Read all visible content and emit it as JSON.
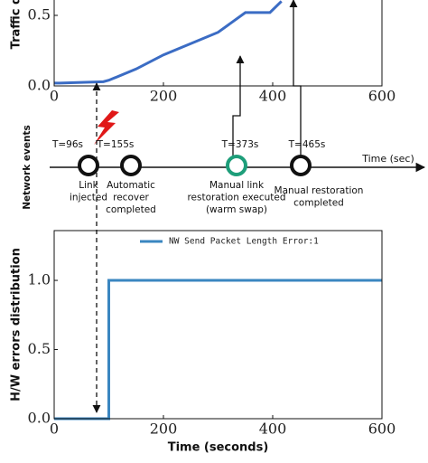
{
  "chart_data": [
    {
      "type": "line",
      "ylabel": "Traffic d",
      "x": [
        0,
        10,
        90,
        100,
        150,
        200,
        300,
        350,
        395,
        416
      ],
      "series": [
        {
          "color": "#3b6cc4",
          "style": "solid",
          "values": [
            0.02,
            0.02,
            0.03,
            0.04,
            0.12,
            0.22,
            0.38,
            0.52,
            0.52,
            0.6
          ]
        },
        {
          "color": "#d0508a",
          "style": "dashed",
          "values": [
            0.02,
            0.02,
            0.03,
            0.04,
            0.12,
            0.22,
            0.38,
            0.52,
            0.52,
            0.6
          ]
        }
      ],
      "xlim": [
        0,
        600
      ],
      "ylim": [
        0,
        0.6
      ],
      "xticks": [
        0,
        200,
        400,
        600
      ],
      "yticks": [
        {
          "value": 0,
          "label": "0.0"
        },
        {
          "value": 0.5,
          "label": "0.5"
        }
      ]
    },
    {
      "type": "line",
      "ylabel": "H/W errors distribution",
      "xlabel": "Time (seconds)",
      "legend": "upper center",
      "x": [
        0,
        100,
        100,
        600
      ],
      "series": [
        {
          "name": "NW Send Packet Length Error:1",
          "color": "#3a86c0",
          "style": "solid",
          "values": [
            0,
            0,
            1,
            1
          ]
        }
      ],
      "xlim": [
        0,
        600
      ],
      "ylim": [
        0,
        1.36
      ],
      "xticks": [
        0,
        200,
        400,
        600
      ],
      "yticks": [
        {
          "value": 0,
          "label": "0.0"
        },
        {
          "value": 0.5,
          "label": "0.5"
        },
        {
          "value": 1,
          "label": "1.0"
        }
      ]
    }
  ],
  "timeline": {
    "ylabel": "Network  events",
    "axis_label": "Time (sec)",
    "events": [
      {
        "label": "T=96s",
        "color": "#111",
        "description": [
          "Link",
          "injected"
        ]
      },
      {
        "label": "T=155s",
        "color": "#111",
        "description": [
          "Automatic",
          "recover",
          "completed"
        ]
      },
      {
        "label": "T=373s",
        "color": "#1e9e7a",
        "description": [
          "Manual link",
          "restoration executed",
          "(warm swap)"
        ]
      },
      {
        "label": "T=465s",
        "color": "#111",
        "description": [
          "Manual restoration",
          "completed"
        ]
      }
    ]
  }
}
